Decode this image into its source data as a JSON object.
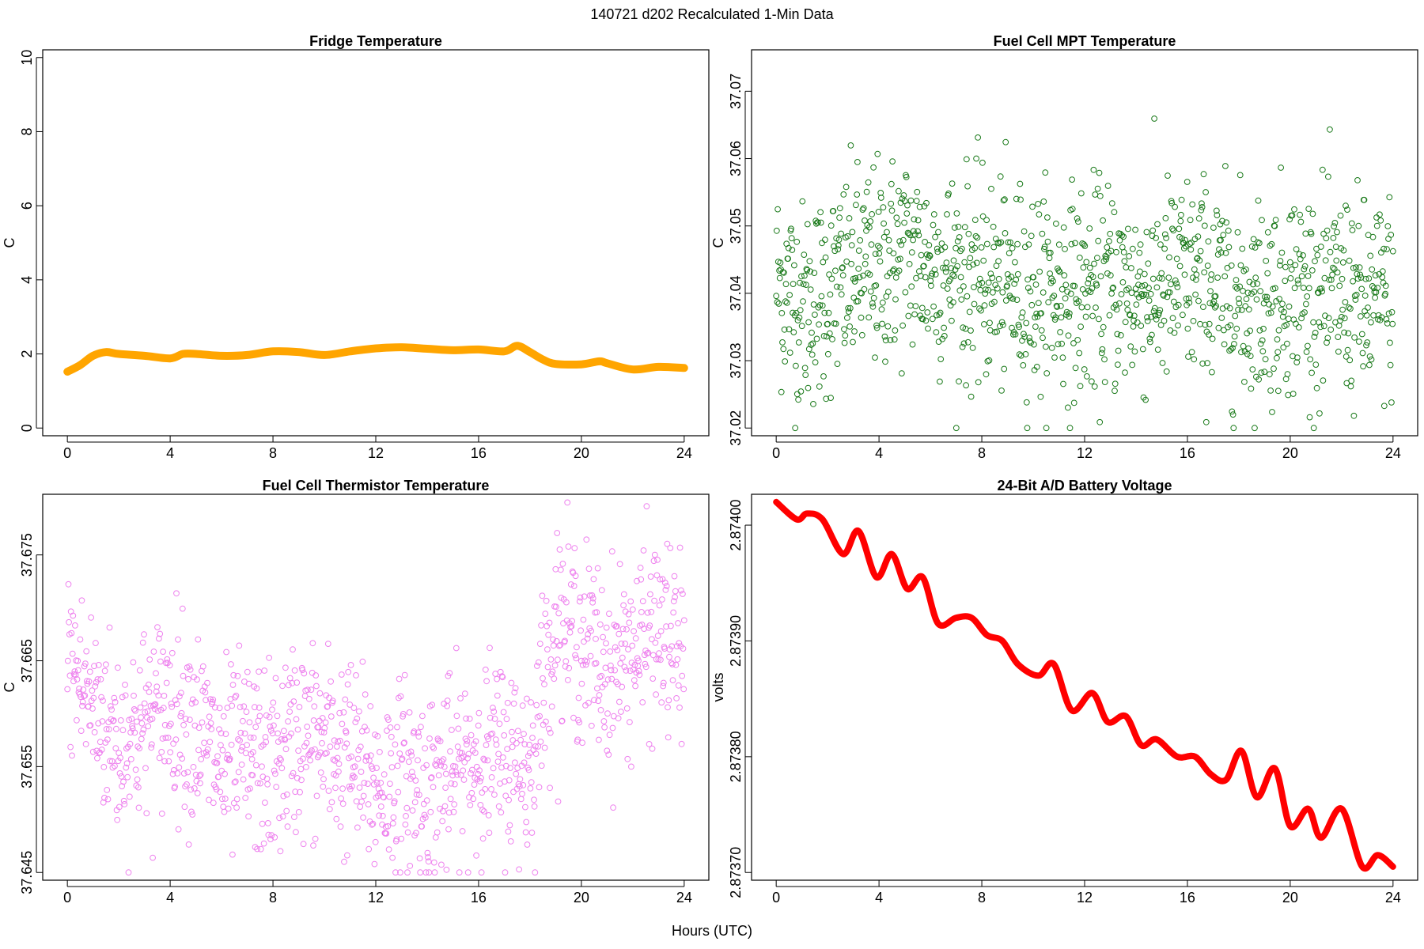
{
  "figure": {
    "title": "140721   d202   Recalculated 1-Min Data",
    "xlabel": "Hours (UTC)"
  },
  "chart_data": [
    {
      "type": "line",
      "title": "Fridge Temperature",
      "xlabel": "",
      "ylabel": "C",
      "color": "#ffa500",
      "xlim": [
        0,
        24
      ],
      "ylim": [
        0,
        10
      ],
      "xticks": [
        "0",
        "4",
        "8",
        "12",
        "16",
        "20",
        "24"
      ],
      "yticks": [
        "0",
        "2",
        "4",
        "6",
        "8",
        "10"
      ],
      "ytick_values": [
        0,
        2,
        4,
        6,
        8,
        10
      ],
      "series": [
        {
          "x": [
            0,
            0.5,
            1,
            1.5,
            2,
            3,
            4,
            4.5,
            5,
            6,
            7,
            8,
            9,
            10,
            11,
            12,
            13,
            14,
            15,
            16,
            17,
            17.5,
            18,
            18.5,
            19,
            20,
            20.7,
            21,
            22,
            23,
            24
          ],
          "y": [
            1.52,
            1.7,
            1.95,
            2.05,
            2.0,
            1.95,
            1.88,
            2.0,
            2.0,
            1.95,
            1.97,
            2.07,
            2.05,
            1.97,
            2.07,
            2.15,
            2.18,
            2.14,
            2.1,
            2.12,
            2.07,
            2.22,
            2.05,
            1.85,
            1.73,
            1.72,
            1.8,
            1.75,
            1.58,
            1.65,
            1.62
          ]
        }
      ]
    },
    {
      "type": "scatter",
      "title": "Fuel Cell MPT Temperature",
      "xlabel": "",
      "ylabel": "C",
      "color": "#1a7a1a",
      "xlim": [
        0,
        24
      ],
      "ylim": [
        37.02,
        37.075
      ],
      "xticks": [
        "0",
        "4",
        "8",
        "12",
        "16",
        "20",
        "24"
      ],
      "yticks": [
        "37.02",
        "37.03",
        "37.04",
        "37.05",
        "37.06",
        "37.07"
      ],
      "ytick_values": [
        37.02,
        37.03,
        37.04,
        37.05,
        37.06,
        37.07
      ],
      "series": [
        {
          "x": [
            0,
            1,
            2,
            3,
            4,
            5,
            6,
            7,
            8,
            9,
            10,
            11,
            12,
            13,
            14,
            15,
            16,
            17,
            18,
            19,
            20,
            21,
            22,
            23,
            24
          ],
          "y": [
            37.042,
            37.038,
            37.04,
            37.043,
            37.044,
            37.046,
            37.044,
            37.043,
            37.042,
            37.041,
            37.04,
            37.04,
            37.04,
            37.041,
            37.04,
            37.041,
            37.042,
            37.041,
            37.039,
            37.039,
            37.041,
            37.04,
            37.04,
            37.038,
            37.04
          ]
        }
      ]
    },
    {
      "type": "scatter",
      "title": "Fuel Cell Thermistor Temperature",
      "xlabel": "",
      "ylabel": "C",
      "color": "#ee82ee",
      "xlim": [
        0,
        24
      ],
      "ylim": [
        37.645,
        37.68
      ],
      "xticks": [
        "0",
        "4",
        "8",
        "12",
        "16",
        "20",
        "24"
      ],
      "yticks": [
        "37.645",
        "37.655",
        "37.665",
        "37.675"
      ],
      "ytick_values": [
        37.645,
        37.655,
        37.665,
        37.675
      ],
      "series": [
        {
          "x": [
            0,
            1,
            2,
            3,
            4,
            5,
            6,
            7,
            8,
            9,
            10,
            11,
            12,
            13,
            14,
            15,
            16,
            17,
            18,
            19,
            20,
            21,
            22,
            23,
            24
          ],
          "y": [
            37.665,
            37.661,
            37.657,
            37.659,
            37.661,
            37.659,
            37.655,
            37.656,
            37.655,
            37.658,
            37.657,
            37.656,
            37.653,
            37.654,
            37.653,
            37.654,
            37.656,
            37.656,
            37.655,
            37.669,
            37.667,
            37.664,
            37.666,
            37.668,
            37.665
          ]
        }
      ]
    },
    {
      "type": "line",
      "title": "24-Bit A/D Battery Voltage",
      "xlabel": "",
      "ylabel": "volts",
      "color": "#ff0000",
      "xlim": [
        0,
        24
      ],
      "ylim": [
        2.8737,
        2.87402
      ],
      "xticks": [
        "0",
        "4",
        "8",
        "12",
        "16",
        "20",
        "24"
      ],
      "yticks": [
        "2.87370",
        "2.87380",
        "2.87390",
        "2.87400"
      ],
      "ytick_values": [
        2.8737,
        2.8738,
        2.8739,
        2.874
      ],
      "series": [
        {
          "x": [
            0,
            0.8,
            1.2,
            1.8,
            2.6,
            3.2,
            3.9,
            4.5,
            5.1,
            5.7,
            6.3,
            7.0,
            7.6,
            8.2,
            8.8,
            9.4,
            10.2,
            10.8,
            11.5,
            12.3,
            12.9,
            13.6,
            14.2,
            14.8,
            15.6,
            16.3,
            16.9,
            17.5,
            18.1,
            18.7,
            19.4,
            20.0,
            20.7,
            21.2,
            22.0,
            22.8,
            23.4,
            24.0
          ],
          "y": [
            2.87402,
            2.874005,
            2.87401,
            2.874005,
            2.873975,
            2.873995,
            2.873955,
            2.873975,
            2.873945,
            2.873955,
            2.873915,
            2.87392,
            2.87392,
            2.873905,
            2.8739,
            2.87388,
            2.87387,
            2.87388,
            2.87384,
            2.873855,
            2.87383,
            2.873835,
            2.87381,
            2.873815,
            2.8738,
            2.8738,
            2.873785,
            2.87378,
            2.873805,
            2.873765,
            2.87379,
            2.87374,
            2.873755,
            2.87373,
            2.873755,
            2.873705,
            2.873715,
            2.873705
          ]
        }
      ]
    }
  ]
}
